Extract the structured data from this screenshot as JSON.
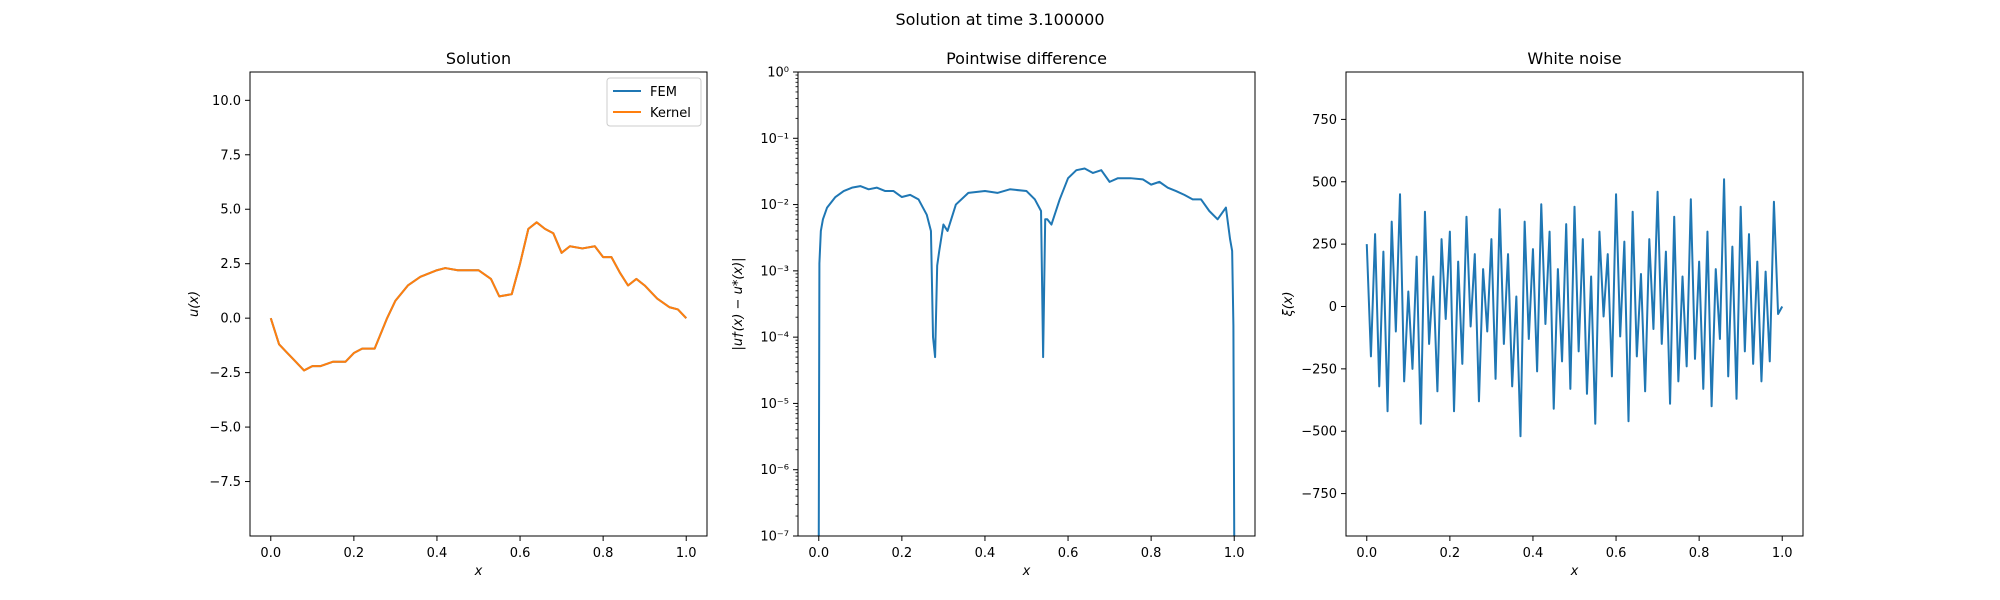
{
  "suptitle": "Solution at time 3.100000",
  "chart_data": [
    {
      "type": "line",
      "title": "Solution",
      "xlabel": "x",
      "ylabel": "u(x)",
      "xlim": [
        -0.05,
        1.05
      ],
      "ylim": [
        -10,
        11.3
      ],
      "xticks": [
        0.0,
        0.2,
        0.4,
        0.6,
        0.8,
        1.0
      ],
      "xtick_labels": [
        "0.0",
        "0.2",
        "0.4",
        "0.6",
        "0.8",
        "1.0"
      ],
      "yticks": [
        -7.5,
        -5.0,
        -2.5,
        0.0,
        2.5,
        5.0,
        7.5,
        10.0
      ],
      "ytick_labels": [
        "−7.5",
        "−5.0",
        "−2.5",
        "0.0",
        "2.5",
        "5.0",
        "7.5",
        "10.0"
      ],
      "legend_position": "top-right",
      "series": [
        {
          "name": "FEM",
          "color": "#1f77b4",
          "x": [
            0,
            0.02,
            0.04,
            0.06,
            0.08,
            0.1,
            0.12,
            0.15,
            0.18,
            0.2,
            0.22,
            0.25,
            0.28,
            0.3,
            0.33,
            0.36,
            0.4,
            0.42,
            0.45,
            0.5,
            0.53,
            0.55,
            0.58,
            0.6,
            0.62,
            0.64,
            0.66,
            0.68,
            0.7,
            0.72,
            0.75,
            0.78,
            0.8,
            0.82,
            0.84,
            0.86,
            0.88,
            0.9,
            0.93,
            0.96,
            0.98,
            1.0
          ],
          "y": [
            0,
            -1.2,
            -1.6,
            -2.0,
            -2.4,
            -2.2,
            -2.2,
            -2.0,
            -2.0,
            -1.6,
            -1.4,
            -1.4,
            0.0,
            0.8,
            1.5,
            1.9,
            2.2,
            2.3,
            2.2,
            2.2,
            1.8,
            1.0,
            1.1,
            2.5,
            4.1,
            4.4,
            4.1,
            3.9,
            3.0,
            3.3,
            3.2,
            3.3,
            2.8,
            2.8,
            2.1,
            1.5,
            1.8,
            1.5,
            0.9,
            0.5,
            0.4,
            0.0
          ]
        },
        {
          "name": "Kernel",
          "color": "#ff7f0e",
          "x": [
            0,
            0.02,
            0.04,
            0.06,
            0.08,
            0.1,
            0.12,
            0.15,
            0.18,
            0.2,
            0.22,
            0.25,
            0.28,
            0.3,
            0.33,
            0.36,
            0.4,
            0.42,
            0.45,
            0.5,
            0.53,
            0.55,
            0.58,
            0.6,
            0.62,
            0.64,
            0.66,
            0.68,
            0.7,
            0.72,
            0.75,
            0.78,
            0.8,
            0.82,
            0.84,
            0.86,
            0.88,
            0.9,
            0.93,
            0.96,
            0.98,
            1.0
          ],
          "y": [
            0,
            -1.2,
            -1.6,
            -2.0,
            -2.4,
            -2.2,
            -2.2,
            -2.0,
            -2.0,
            -1.6,
            -1.4,
            -1.4,
            0.0,
            0.8,
            1.5,
            1.9,
            2.2,
            2.3,
            2.2,
            2.2,
            1.8,
            1.0,
            1.1,
            2.5,
            4.1,
            4.4,
            4.1,
            3.9,
            3.0,
            3.3,
            3.2,
            3.3,
            2.8,
            2.8,
            2.1,
            1.5,
            1.8,
            1.5,
            0.9,
            0.5,
            0.4,
            0.0
          ]
        }
      ]
    },
    {
      "type": "line",
      "title": "Pointwise difference",
      "xlabel": "x",
      "ylabel": "|u†(x) − u*(x)|",
      "xlim": [
        -0.05,
        1.05
      ],
      "ylim": [
        1e-07,
        1
      ],
      "yscale": "log",
      "xticks": [
        0.0,
        0.2,
        0.4,
        0.6,
        0.8,
        1.0
      ],
      "xtick_labels": [
        "0.0",
        "0.2",
        "0.4",
        "0.6",
        "0.8",
        "1.0"
      ],
      "yticks": [
        1e-07,
        1e-06,
        1e-05,
        0.0001,
        0.001,
        0.01,
        0.1,
        1
      ],
      "ytick_labels": [
        "10⁻⁷",
        "10⁻⁶",
        "10⁻⁵",
        "10⁻⁴",
        "10⁻³",
        "10⁻²",
        "10⁻¹",
        "10⁰"
      ],
      "series": [
        {
          "color": "#1f77b4",
          "x": [
            0,
            0.0015,
            0.005,
            0.01,
            0.02,
            0.04,
            0.06,
            0.08,
            0.1,
            0.12,
            0.14,
            0.16,
            0.18,
            0.2,
            0.22,
            0.24,
            0.26,
            0.27,
            0.275,
            0.28,
            0.285,
            0.29,
            0.3,
            0.31,
            0.33,
            0.36,
            0.4,
            0.43,
            0.46,
            0.5,
            0.52,
            0.535,
            0.54,
            0.545,
            0.55,
            0.56,
            0.58,
            0.6,
            0.62,
            0.64,
            0.66,
            0.68,
            0.7,
            0.72,
            0.75,
            0.78,
            0.8,
            0.82,
            0.84,
            0.86,
            0.88,
            0.9,
            0.92,
            0.94,
            0.96,
            0.98,
            0.99,
            0.995,
            0.998,
            1.0
          ],
          "y": [
            1e-07,
            0.0013,
            0.004,
            0.006,
            0.009,
            0.013,
            0.016,
            0.018,
            0.019,
            0.017,
            0.018,
            0.016,
            0.016,
            0.013,
            0.014,
            0.012,
            0.007,
            0.004,
            0.0001,
            5e-05,
            0.0012,
            0.002,
            0.005,
            0.004,
            0.01,
            0.015,
            0.016,
            0.015,
            0.017,
            0.016,
            0.012,
            0.008,
            5e-05,
            0.006,
            0.006,
            0.005,
            0.012,
            0.025,
            0.033,
            0.035,
            0.03,
            0.033,
            0.022,
            0.025,
            0.025,
            0.024,
            0.02,
            0.022,
            0.018,
            0.016,
            0.014,
            0.012,
            0.012,
            0.008,
            0.006,
            0.009,
            0.003,
            0.002,
            0.00015,
            1e-07
          ]
        }
      ]
    },
    {
      "type": "line",
      "title": "White noise",
      "xlabel": "x",
      "ylabel": "ξ(x)",
      "xlim": [
        -0.05,
        1.05
      ],
      "ylim": [
        -920,
        940
      ],
      "xticks": [
        0.0,
        0.2,
        0.4,
        0.6,
        0.8,
        1.0
      ],
      "xtick_labels": [
        "0.0",
        "0.2",
        "0.4",
        "0.6",
        "0.8",
        "1.0"
      ],
      "yticks": [
        -750,
        -500,
        -250,
        0,
        250,
        500,
        750
      ],
      "ytick_labels": [
        "−750",
        "−500",
        "−250",
        "0",
        "250",
        "500",
        "750"
      ],
      "series": [
        {
          "color": "#1f77b4",
          "x": [
            0,
            0.01,
            0.02,
            0.03,
            0.04,
            0.05,
            0.06,
            0.07,
            0.08,
            0.09,
            0.1,
            0.11,
            0.12,
            0.13,
            0.14,
            0.15,
            0.16,
            0.17,
            0.18,
            0.19,
            0.2,
            0.21,
            0.22,
            0.23,
            0.24,
            0.25,
            0.26,
            0.27,
            0.28,
            0.29,
            0.3,
            0.31,
            0.32,
            0.33,
            0.34,
            0.35,
            0.36,
            0.37,
            0.38,
            0.39,
            0.4,
            0.41,
            0.42,
            0.43,
            0.44,
            0.45,
            0.46,
            0.47,
            0.48,
            0.49,
            0.5,
            0.51,
            0.52,
            0.53,
            0.54,
            0.55,
            0.56,
            0.57,
            0.58,
            0.59,
            0.6,
            0.61,
            0.62,
            0.63,
            0.64,
            0.65,
            0.66,
            0.67,
            0.68,
            0.69,
            0.7,
            0.71,
            0.72,
            0.73,
            0.74,
            0.75,
            0.76,
            0.77,
            0.78,
            0.79,
            0.8,
            0.81,
            0.82,
            0.83,
            0.84,
            0.85,
            0.86,
            0.87,
            0.88,
            0.89,
            0.9,
            0.91,
            0.92,
            0.93,
            0.94,
            0.95,
            0.96,
            0.97,
            0.98,
            0.99,
            1.0
          ],
          "y": [
            250,
            -200,
            290,
            -320,
            220,
            -420,
            340,
            -100,
            450,
            -300,
            60,
            -250,
            200,
            -470,
            380,
            -150,
            120,
            -340,
            270,
            -50,
            300,
            -420,
            180,
            -230,
            360,
            -80,
            210,
            -380,
            150,
            -100,
            270,
            -290,
            390,
            -150,
            210,
            -320,
            40,
            -520,
            340,
            -130,
            230,
            -260,
            410,
            -70,
            300,
            -410,
            150,
            -220,
            330,
            -330,
            400,
            -180,
            270,
            -350,
            120,
            -470,
            300,
            -40,
            210,
            -280,
            450,
            -120,
            260,
            -460,
            380,
            -200,
            130,
            -340,
            270,
            -90,
            460,
            -150,
            220,
            -390,
            360,
            -300,
            120,
            -240,
            430,
            -210,
            180,
            -330,
            300,
            -400,
            150,
            -130,
            510,
            -280,
            240,
            -370,
            400,
            -180,
            290,
            -230,
            180,
            -300,
            140,
            -220,
            420,
            -30,
            0
          ]
        }
      ]
    }
  ]
}
